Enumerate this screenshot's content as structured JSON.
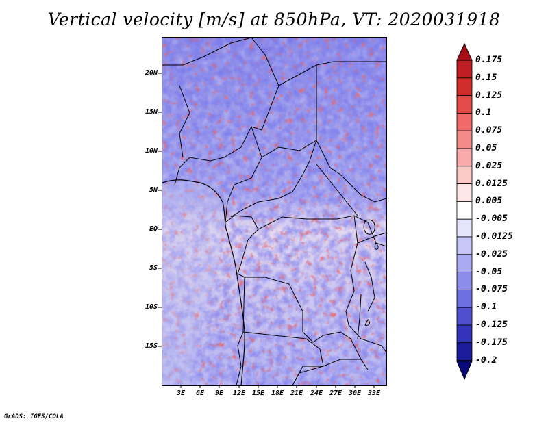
{
  "title": "Vertical velocity [m/s] at 850hPa, VT: 2020031918",
  "credit": "GrADS: IGES/COLA",
  "lat_labels": [
    "20N",
    "15N",
    "10N",
    "5N",
    "EQ",
    "5S",
    "10S",
    "15S"
  ],
  "lon_labels": [
    "3E",
    "6E",
    "9E",
    "12E",
    "15E",
    "18E",
    "21E",
    "24E",
    "27E",
    "30E",
    "33E"
  ],
  "colorbar": {
    "labels": [
      "0.175",
      "0.15",
      "0.125",
      "0.1",
      "0.075",
      "0.05",
      "0.025",
      "0.0125",
      "0.005",
      "-0.005",
      "-0.0125",
      "-0.025",
      "-0.05",
      "-0.075",
      "-0.1",
      "-0.125",
      "-0.175",
      "-0.2"
    ],
    "colors": [
      "#a50f15",
      "#bd1e24",
      "#d02d2d",
      "#e34a4a",
      "#ef6a6a",
      "#f48b8b",
      "#f9aaaa",
      "#fcc9c9",
      "#fee6e6",
      "#ffffff",
      "#e4e4fc",
      "#c8c8f8",
      "#aaaaf2",
      "#8c8ceb",
      "#6e6ee0",
      "#4f4fcf",
      "#3434b8",
      "#1c1c9c",
      "#0a0a7a"
    ]
  },
  "map_field": {
    "legend": "vertical velocity field, blue = ascent / red = descent",
    "color_neg": "#4a4ad8",
    "color_pos": "#d23030"
  }
}
